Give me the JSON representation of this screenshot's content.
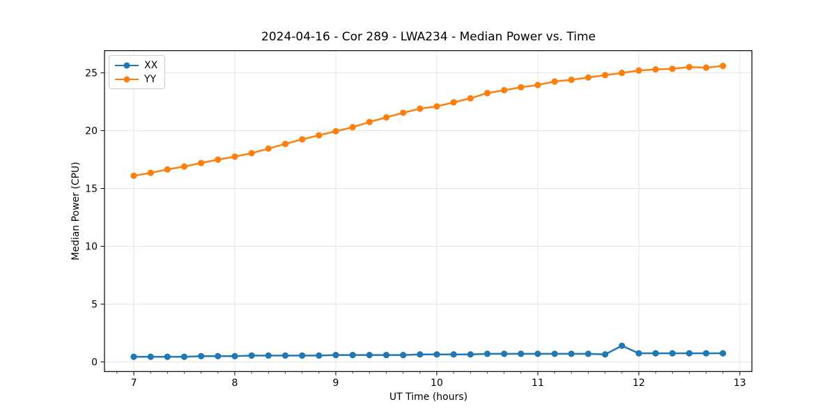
{
  "figure": {
    "title": "2024-04-16 - Cor 289 - LWA234 - Median Power vs. Time",
    "xlabel": "UT Time (hours)",
    "ylabel": "Median Power (CPU)"
  },
  "chart_data": {
    "type": "line",
    "title": "2024-04-16 - Cor 289 - LWA234 - Median Power vs. Time",
    "xlabel": "UT Time (hours)",
    "ylabel": "Median Power (CPU)",
    "x": [
      7.0,
      7.167,
      7.333,
      7.5,
      7.667,
      7.833,
      8.0,
      8.167,
      8.333,
      8.5,
      8.667,
      8.833,
      9.0,
      9.167,
      9.333,
      9.5,
      9.667,
      9.833,
      10.0,
      10.167,
      10.333,
      10.5,
      10.667,
      10.833,
      11.0,
      11.167,
      11.333,
      11.5,
      11.667,
      11.833,
      12.0,
      12.167,
      12.333,
      12.5,
      12.667,
      12.833
    ],
    "series": [
      {
        "name": "XX",
        "color": "#1f77b4",
        "marker": "circle",
        "values": [
          0.45,
          0.45,
          0.45,
          0.45,
          0.5,
          0.5,
          0.5,
          0.55,
          0.55,
          0.55,
          0.55,
          0.55,
          0.6,
          0.6,
          0.6,
          0.6,
          0.6,
          0.65,
          0.65,
          0.65,
          0.65,
          0.7,
          0.7,
          0.7,
          0.7,
          0.7,
          0.7,
          0.7,
          0.65,
          1.4,
          0.75,
          0.75,
          0.75,
          0.75,
          0.75,
          0.75
        ]
      },
      {
        "name": "YY",
        "color": "#ff7f0e",
        "marker": "circle",
        "values": [
          16.1,
          16.35,
          16.65,
          16.9,
          17.2,
          17.5,
          17.75,
          18.05,
          18.45,
          18.85,
          19.25,
          19.6,
          19.95,
          20.3,
          20.75,
          21.15,
          21.55,
          21.9,
          22.1,
          22.45,
          22.8,
          23.25,
          23.5,
          23.75,
          23.95,
          24.25,
          24.4,
          24.6,
          24.8,
          25.0,
          25.2,
          25.3,
          25.35,
          25.5,
          25.45,
          25.6
        ]
      }
    ],
    "xlim": [
      6.71,
      13.12
    ],
    "ylim": [
      -0.83,
      26.92
    ],
    "x_ticks": [
      7,
      8,
      9,
      10,
      11,
      12,
      13
    ],
    "y_ticks": [
      0,
      5,
      10,
      15,
      20,
      25
    ],
    "x_minor_tick_step": 0.166667,
    "grid": true,
    "grid_color": "#e5e5e5",
    "legend_position": "upper left",
    "background": "#ffffff"
  }
}
